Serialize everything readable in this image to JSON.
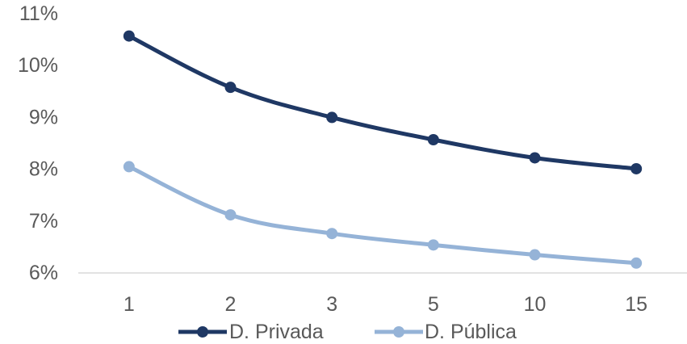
{
  "chart_data": {
    "type": "line",
    "title": "",
    "xlabel": "",
    "ylabel": "",
    "categories": [
      "1",
      "2",
      "3",
      "5",
      "10",
      "15"
    ],
    "ylim": [
      6,
      11
    ],
    "yticks": [
      "6%",
      "7%",
      "8%",
      "9%",
      "10%",
      "11%"
    ],
    "grid": false,
    "legend_position": "bottom",
    "series": [
      {
        "name": "D. Privada",
        "color": "#1f3864",
        "values": [
          10.57,
          9.58,
          9.0,
          8.57,
          8.22,
          8.01
        ]
      },
      {
        "name": "D. Pública",
        "color": "#95b3d7",
        "values": [
          8.05,
          7.12,
          6.76,
          6.54,
          6.35,
          6.19
        ]
      }
    ]
  }
}
